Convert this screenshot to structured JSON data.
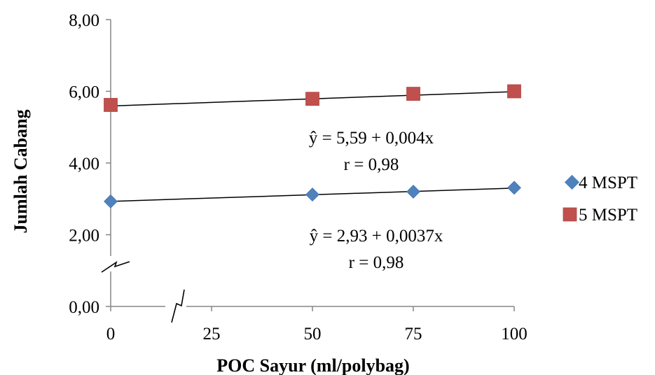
{
  "chart_data": {
    "type": "scatter",
    "xlabel": "POC Sayur (ml/polybag)",
    "ylabel": "Jumlah Cabang",
    "x_ticks": [
      "0",
      "25",
      "50",
      "75",
      "100"
    ],
    "y_ticks": [
      "0,00",
      "2,00",
      "4,00",
      "6,00",
      "8,00"
    ],
    "xlim": [
      0,
      100
    ],
    "ylim": [
      0,
      8
    ],
    "grid": false,
    "axis_breaks": true,
    "legend_position": "right",
    "series": [
      {
        "name": "4 MSPT",
        "marker": "diamond",
        "color": "#4f81bd",
        "x": [
          0,
          50,
          75,
          100
        ],
        "y": [
          2.93,
          3.12,
          3.2,
          3.31
        ],
        "trendline": {
          "intercept": 2.93,
          "slope": 0.0037
        },
        "equation": "ŷ = 2,93 + 0,0037x",
        "r_label": "r = 0,98"
      },
      {
        "name": "5 MSPT",
        "marker": "square",
        "color": "#c0504d",
        "x": [
          0,
          50,
          75,
          100
        ],
        "y": [
          5.62,
          5.79,
          5.93,
          6.0
        ],
        "trendline": {
          "intercept": 5.59,
          "slope": 0.004
        },
        "equation": "ŷ = 5,59 + 0,004x",
        "r_label": "r = 0,98"
      }
    ]
  }
}
